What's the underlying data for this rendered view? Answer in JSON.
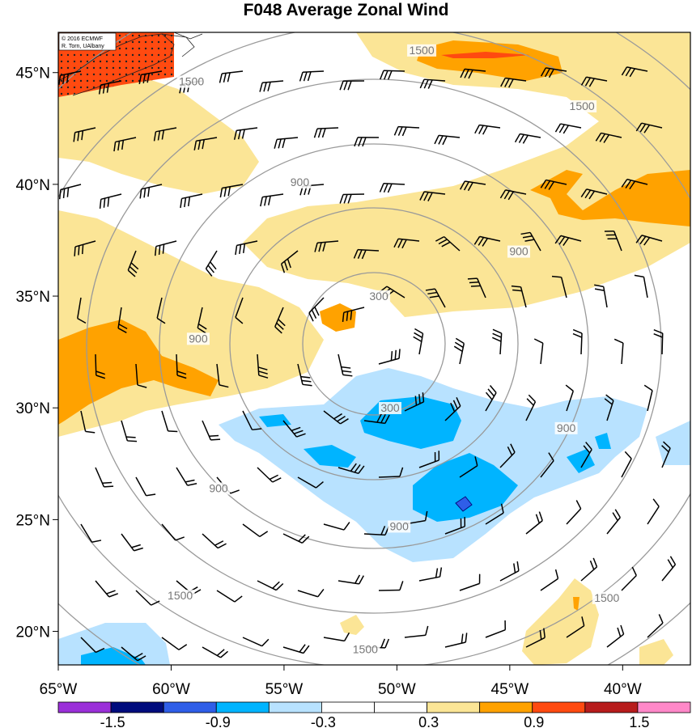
{
  "title": "F048 Average Zonal Wind",
  "credit": {
    "line1": "© 2016 ECMWF",
    "line2": "R. Torn, UAlbany"
  },
  "map": {
    "lat_range": [
      18.5,
      46.8
    ],
    "lon_range": [
      -65.0,
      -37.0
    ],
    "lat_ticks": [
      {
        "value": 20,
        "label": "20°N"
      },
      {
        "value": 25,
        "label": "25°N"
      },
      {
        "value": 30,
        "label": "30°N"
      },
      {
        "value": 35,
        "label": "35°N"
      },
      {
        "value": 40,
        "label": "40°N"
      },
      {
        "value": 45,
        "label": "45°N"
      }
    ],
    "lon_ticks": [
      {
        "value": -65,
        "label": "65°W"
      },
      {
        "value": -60,
        "label": "60°W"
      },
      {
        "value": -55,
        "label": "55°W"
      },
      {
        "value": -50,
        "label": "50°W"
      },
      {
        "value": -45,
        "label": "45°W"
      },
      {
        "value": -40,
        "label": "40°W"
      }
    ],
    "contour_labels": [
      {
        "text": "300",
        "lon": -50.8,
        "lat": 34.9
      },
      {
        "text": "300",
        "lon": -50.3,
        "lat": 29.9
      },
      {
        "text": "900",
        "lon": -54.3,
        "lat": 40.0
      },
      {
        "text": "900",
        "lon": -58.8,
        "lat": 33.0
      },
      {
        "text": "900",
        "lon": -57.9,
        "lat": 26.3
      },
      {
        "text": "900",
        "lon": -49.9,
        "lat": 24.6
      },
      {
        "text": "900",
        "lon": -44.6,
        "lat": 36.9
      },
      {
        "text": "900",
        "lon": -42.5,
        "lat": 29.0
      },
      {
        "text": "1500",
        "lon": -48.9,
        "lat": 45.9
      },
      {
        "text": "1500",
        "lon": -59.1,
        "lat": 44.5
      },
      {
        "text": "1500",
        "lon": -41.8,
        "lat": 43.4
      },
      {
        "text": "1500",
        "lon": -59.6,
        "lat": 21.5
      },
      {
        "text": "1500",
        "lon": -51.4,
        "lat": 19.1
      },
      {
        "text": "1500",
        "lon": -40.7,
        "lat": 21.4
      }
    ]
  },
  "colorbar": {
    "colors": [
      "#9b30d9",
      "#000c7d",
      "#2f5ee8",
      "#00b4ff",
      "#b8e2ff",
      "#ffffff",
      "#ffffff",
      "#fbe596",
      "#ffa200",
      "#ff4a10",
      "#b71c1c",
      "#ff88c8"
    ],
    "labels": [
      "-1.5",
      "-0.9",
      "-0.3",
      "0.3",
      "0.9",
      "1.5"
    ]
  }
}
